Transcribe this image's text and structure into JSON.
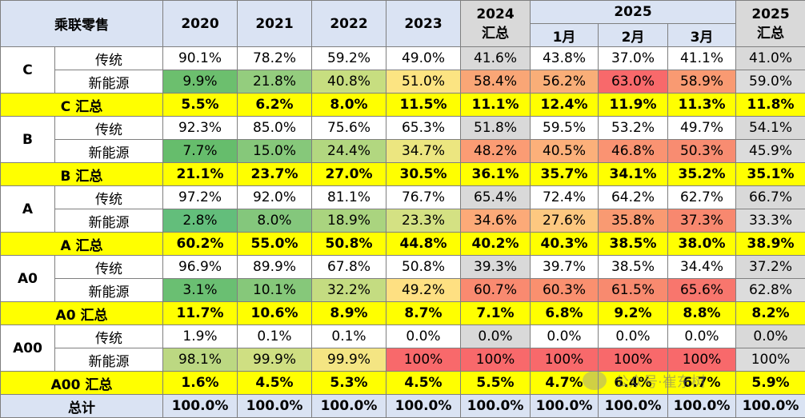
{
  "header": {
    "corner": "乘联零售",
    "years": [
      "2020",
      "2021",
      "2022",
      "2023"
    ],
    "summary_2024": "2024 汇总",
    "year_2025": "2025",
    "months": [
      "1月",
      "2月",
      "3月"
    ],
    "summary_2025_line1": "2025",
    "summary_2025_line2": "汇总"
  },
  "colors": {
    "header_bg": "#dae3f3",
    "summary_bg": "#ffff00",
    "gray_bg": "#d9d9d9",
    "nev_text": "#ff0000"
  },
  "labels": {
    "traditional": "传统",
    "nev": "新能源"
  },
  "groups": [
    {
      "name": "C",
      "traditional": [
        "90.1%",
        "78.2%",
        "59.2%",
        "49.0%",
        "41.6%",
        "43.8%",
        "37.0%",
        "41.1%",
        "41.0%"
      ],
      "nev": [
        "9.9%",
        "21.8%",
        "40.8%",
        "51.0%",
        "58.4%",
        "56.2%",
        "63.0%",
        "58.9%",
        "59.0%"
      ],
      "summary_label": "C 汇总",
      "summary": [
        "5.5%",
        "6.2%",
        "8.0%",
        "11.5%",
        "11.1%",
        "12.4%",
        "11.9%",
        "11.3%",
        "11.8%"
      ]
    },
    {
      "name": "B",
      "traditional": [
        "92.3%",
        "85.0%",
        "75.6%",
        "65.3%",
        "51.8%",
        "59.5%",
        "53.2%",
        "49.7%",
        "54.1%"
      ],
      "nev": [
        "7.7%",
        "15.0%",
        "24.4%",
        "34.7%",
        "48.2%",
        "40.5%",
        "46.8%",
        "50.3%",
        "45.9%"
      ],
      "summary_label": "B 汇总",
      "summary": [
        "21.1%",
        "23.7%",
        "27.0%",
        "30.5%",
        "36.1%",
        "35.7%",
        "34.1%",
        "35.2%",
        "35.1%"
      ]
    },
    {
      "name": "A",
      "traditional": [
        "97.2%",
        "92.0%",
        "81.1%",
        "76.7%",
        "65.4%",
        "72.4%",
        "64.2%",
        "62.7%",
        "66.7%"
      ],
      "nev": [
        "2.8%",
        "8.0%",
        "18.9%",
        "23.3%",
        "34.6%",
        "27.6%",
        "35.8%",
        "37.3%",
        "33.3%"
      ],
      "summary_label": "A 汇总",
      "summary": [
        "60.2%",
        "55.0%",
        "50.8%",
        "44.8%",
        "40.2%",
        "40.3%",
        "38.5%",
        "38.0%",
        "38.9%"
      ]
    },
    {
      "name": "A0",
      "traditional": [
        "96.9%",
        "89.9%",
        "67.8%",
        "50.8%",
        "39.3%",
        "39.7%",
        "38.5%",
        "34.4%",
        "37.2%"
      ],
      "nev": [
        "3.1%",
        "10.1%",
        "32.2%",
        "49.2%",
        "60.7%",
        "60.3%",
        "61.5%",
        "65.6%",
        "62.8%"
      ],
      "summary_label": "A0 汇总",
      "summary": [
        "11.7%",
        "10.6%",
        "8.9%",
        "8.7%",
        "7.1%",
        "6.8%",
        "9.2%",
        "8.8%",
        "8.2%"
      ]
    },
    {
      "name": "A00",
      "traditional": [
        "1.9%",
        "0.1%",
        "0.1%",
        "0.0%",
        "0.0%",
        "0.0%",
        "0.0%",
        "0.0%",
        "0.0%"
      ],
      "nev": [
        "98.1%",
        "99.9%",
        "99.9%",
        "100%",
        "100%",
        "100%",
        "100%",
        "100%",
        "100%"
      ],
      "summary_label": "A00 汇总",
      "summary": [
        "1.6%",
        "4.5%",
        "5.3%",
        "4.5%",
        "5.5%",
        "4.7%",
        "6.4%",
        "6.7%",
        "5.9%"
      ]
    }
  ],
  "total": {
    "label": "总计",
    "values": [
      "100.0%",
      "100.0%",
      "100.0%",
      "100.0%",
      "100.0%",
      "100.0%",
      "100.0%",
      "100.0%",
      "100.0%"
    ]
  },
  "nev_fill_colors": [
    [
      "#6cbf6e",
      "#94cd7e",
      "#c7de80",
      "#fce482",
      "#f9a676",
      "#f9ae78",
      "#f8696b",
      "#f99a72",
      "#dcdcdc"
    ],
    [
      "#66bd6c",
      "#86c87a",
      "#b2d780",
      "#ece680",
      "#fb9c74",
      "#fcb07a",
      "#fa9372",
      "#f88c71",
      "#dcdcdc"
    ],
    [
      "#63be7b",
      "#84c77c",
      "#aad47f",
      "#d4e183",
      "#fcaa78",
      "#fdc880",
      "#f99a72",
      "#f8886f",
      "#dcdcdc"
    ],
    [
      "#6abf72",
      "#86c87a",
      "#c4dc81",
      "#fee082",
      "#f98a70",
      "#fa906f",
      "#f88a6f",
      "#f8766d",
      "#dcdcdc"
    ],
    [
      "#bcd882",
      "#cfdf82",
      "#f4e583",
      "#f8696b",
      "#f8696b",
      "#f8696b",
      "#f8696b",
      "#f8696b",
      "#dcdcdc"
    ]
  ],
  "watermark": "公众号·崔东树"
}
